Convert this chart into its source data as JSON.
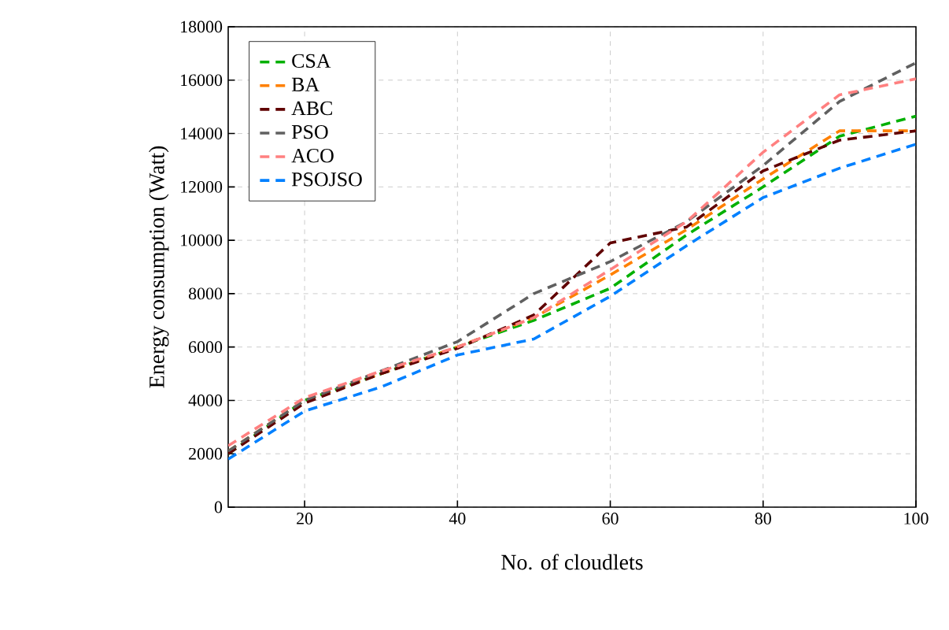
{
  "chart_data": {
    "type": "line",
    "xlabel": "No. of cloudlets",
    "ylabel": "Energy consumption (Watt)",
    "x": [
      10,
      20,
      30,
      40,
      50,
      60,
      70,
      80,
      90,
      100
    ],
    "series": [
      {
        "name": "CSA",
        "color": "#00b000",
        "values": [
          2000,
          4000,
          5000,
          6000,
          7000,
          8200,
          10200,
          12000,
          13900,
          14650
        ]
      },
      {
        "name": "BA",
        "color": "#ff8000",
        "values": [
          2100,
          4000,
          5000,
          6000,
          7100,
          8700,
          10400,
          12300,
          14100,
          14100
        ]
      },
      {
        "name": "ABC",
        "color": "#600000",
        "values": [
          2000,
          3900,
          5000,
          5950,
          7200,
          9900,
          10500,
          12600,
          13750,
          14100
        ]
      },
      {
        "name": "PSO",
        "color": "#606060",
        "values": [
          2100,
          4000,
          5100,
          6200,
          8000,
          9200,
          10700,
          12800,
          15200,
          16650
        ]
      },
      {
        "name": "ACO",
        "color": "#ff8080",
        "values": [
          2300,
          4100,
          5100,
          6000,
          7100,
          8900,
          10700,
          13300,
          15450,
          16050
        ]
      },
      {
        "name": "PSOJSO",
        "color": "#0080ff",
        "values": [
          1800,
          3600,
          4500,
          5700,
          6300,
          7900,
          9800,
          11600,
          12700,
          13600
        ]
      }
    ],
    "xlim": [
      10,
      100
    ],
    "xticks": [
      20,
      40,
      60,
      80,
      100
    ],
    "ylim": [
      0,
      18000
    ],
    "yticks": [
      0,
      2000,
      4000,
      6000,
      8000,
      10000,
      12000,
      14000,
      16000,
      18000
    ],
    "grid": true,
    "legend": "top left",
    "line_style": "dashed",
    "marker": "none"
  }
}
